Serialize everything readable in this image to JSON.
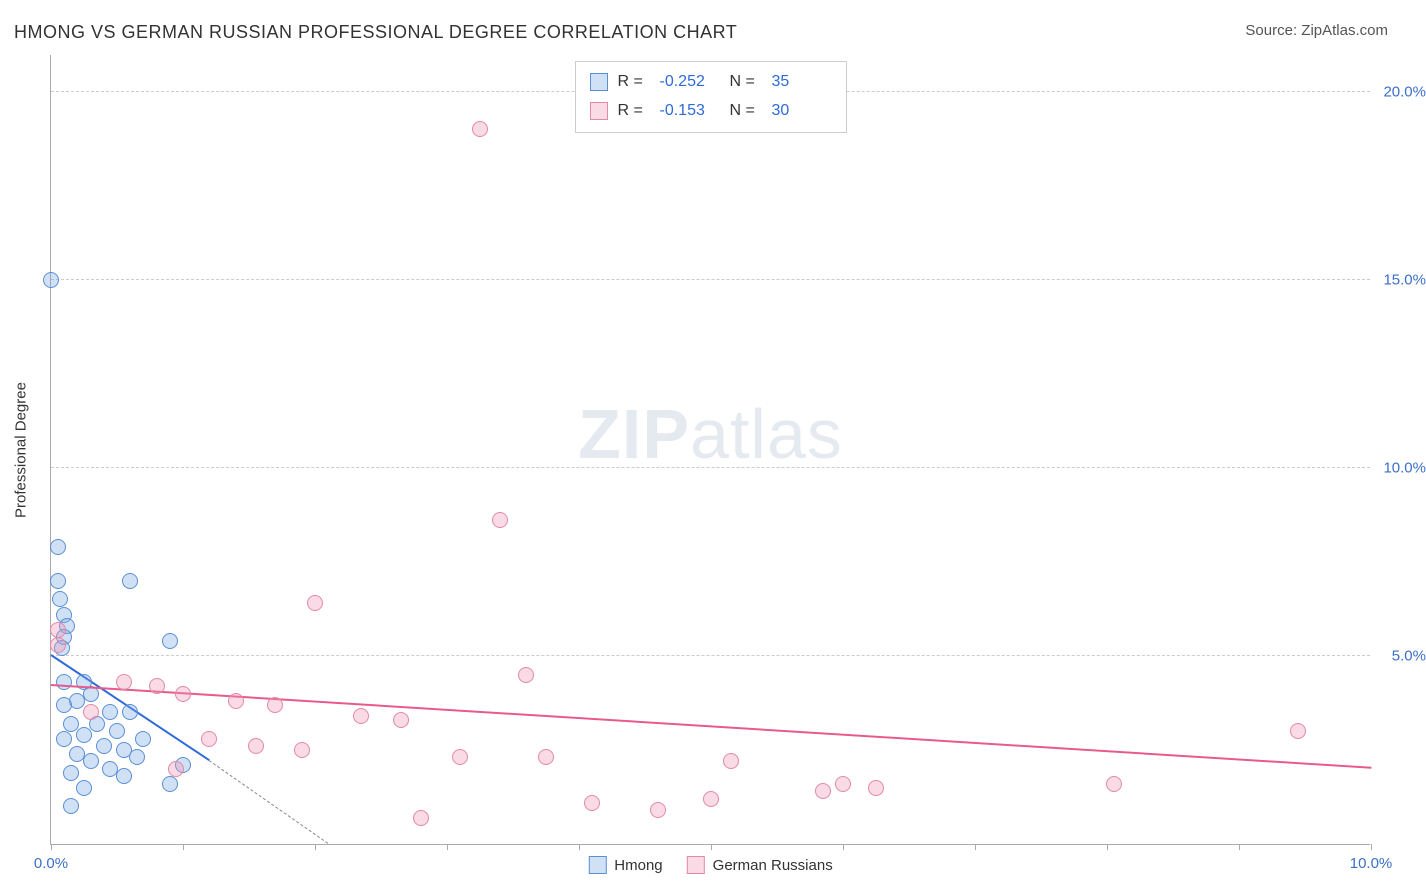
{
  "title": "HMONG VS GERMAN RUSSIAN PROFESSIONAL DEGREE CORRELATION CHART",
  "source_prefix": "Source: ",
  "source_name": "ZipAtlas.com",
  "watermark_bold": "ZIP",
  "watermark_rest": "atlas",
  "chart": {
    "type": "scatter",
    "ylabel": "Professional Degree",
    "xlim": [
      0,
      10
    ],
    "ylim": [
      0,
      21
    ],
    "x_ticks": [
      0,
      1,
      2,
      3,
      4,
      5,
      6,
      7,
      8,
      9,
      10
    ],
    "x_tick_labels_shown": {
      "0": "0.0%",
      "10": "10.0%"
    },
    "y_gridlines": [
      5,
      10,
      15,
      20
    ],
    "y_tick_labels": {
      "5": "5.0%",
      "10": "10.0%",
      "15": "15.0%",
      "20": "20.0%"
    },
    "grid_color": "#cccccc",
    "axis_color": "#aaaaaa",
    "tick_label_color": "#3b6fc9",
    "background_color": "#ffffff",
    "point_radius": 8,
    "series": [
      {
        "name": "Hmong",
        "fill": "rgba(120,170,230,0.35)",
        "stroke": "#5a8fd6",
        "trend_color": "#2e6bd6",
        "trend_dash_color": "#888888",
        "R_label": "R =",
        "R": "-0.252",
        "N_label": "N =",
        "N": "35",
        "trend": {
          "x1": 0.0,
          "y1": 5.0,
          "x2": 1.2,
          "y2": 2.2
        },
        "trend_ext": {
          "x1": 1.2,
          "y1": 2.2,
          "x2": 2.1,
          "y2": 0.0
        },
        "points": [
          [
            0.0,
            15.0
          ],
          [
            0.05,
            7.9
          ],
          [
            0.6,
            7.0
          ],
          [
            0.05,
            7.0
          ],
          [
            0.07,
            6.5
          ],
          [
            0.1,
            6.1
          ],
          [
            0.9,
            5.4
          ],
          [
            0.12,
            5.8
          ],
          [
            0.1,
            5.5
          ],
          [
            0.08,
            5.2
          ],
          [
            0.25,
            4.3
          ],
          [
            0.1,
            4.3
          ],
          [
            0.3,
            4.0
          ],
          [
            0.2,
            3.8
          ],
          [
            0.1,
            3.7
          ],
          [
            0.45,
            3.5
          ],
          [
            0.6,
            3.5
          ],
          [
            0.35,
            3.2
          ],
          [
            0.15,
            3.2
          ],
          [
            0.5,
            3.0
          ],
          [
            0.25,
            2.9
          ],
          [
            0.7,
            2.8
          ],
          [
            0.1,
            2.8
          ],
          [
            0.4,
            2.6
          ],
          [
            0.55,
            2.5
          ],
          [
            0.2,
            2.4
          ],
          [
            0.65,
            2.3
          ],
          [
            0.3,
            2.2
          ],
          [
            1.0,
            2.1
          ],
          [
            0.45,
            2.0
          ],
          [
            0.15,
            1.9
          ],
          [
            0.55,
            1.8
          ],
          [
            0.9,
            1.6
          ],
          [
            0.25,
            1.5
          ],
          [
            0.15,
            1.0
          ]
        ]
      },
      {
        "name": "German Russians",
        "fill": "rgba(240,150,180,0.35)",
        "stroke": "#e389a8",
        "trend_color": "#e75a8d",
        "R_label": "R =",
        "R": "-0.153",
        "N_label": "N =",
        "N": "30",
        "trend": {
          "x1": 0.0,
          "y1": 4.2,
          "x2": 10.0,
          "y2": 2.0
        },
        "points": [
          [
            3.25,
            19.0
          ],
          [
            3.4,
            8.6
          ],
          [
            2.0,
            6.4
          ],
          [
            0.05,
            5.7
          ],
          [
            0.05,
            5.3
          ],
          [
            3.6,
            4.5
          ],
          [
            0.55,
            4.3
          ],
          [
            0.8,
            4.2
          ],
          [
            1.0,
            4.0
          ],
          [
            1.4,
            3.8
          ],
          [
            1.7,
            3.7
          ],
          [
            2.35,
            3.4
          ],
          [
            2.65,
            3.3
          ],
          [
            9.45,
            3.0
          ],
          [
            1.2,
            2.8
          ],
          [
            1.55,
            2.6
          ],
          [
            1.9,
            2.5
          ],
          [
            3.1,
            2.3
          ],
          [
            3.75,
            2.3
          ],
          [
            5.15,
            2.2
          ],
          [
            6.0,
            1.6
          ],
          [
            8.05,
            1.6
          ],
          [
            6.25,
            1.5
          ],
          [
            5.85,
            1.4
          ],
          [
            5.0,
            1.2
          ],
          [
            4.1,
            1.1
          ],
          [
            4.6,
            0.9
          ],
          [
            2.8,
            0.7
          ],
          [
            0.95,
            2.0
          ],
          [
            0.3,
            3.5
          ]
        ]
      }
    ],
    "legend_bottom": [
      "Hmong",
      "German Russians"
    ]
  }
}
